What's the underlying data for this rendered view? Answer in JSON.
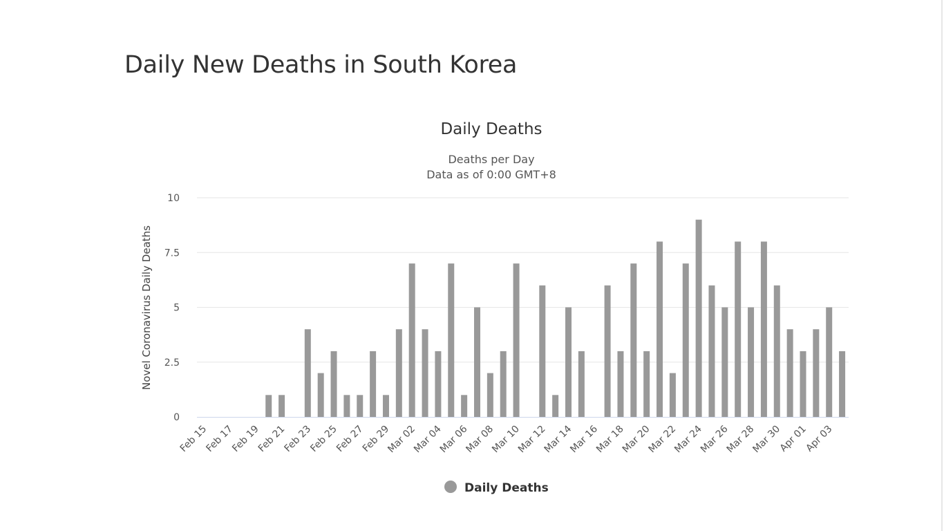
{
  "page": {
    "title": "Daily New Deaths in South Korea"
  },
  "chart_data": {
    "type": "bar",
    "title": "Daily Deaths",
    "subtitle_lines": [
      "Deaths per Day",
      "Data as of 0:00 GMT+8"
    ],
    "ylabel": "Novel Coronavirus Daily Deaths",
    "xlabel": "",
    "ylim": [
      0,
      10
    ],
    "yticks": [
      "0",
      "2.5",
      "5",
      "7.5",
      "10"
    ],
    "grid": true,
    "legend_position": "bottom-center",
    "color": "#999999",
    "categories": [
      "Feb 15",
      "Feb 16",
      "Feb 17",
      "Feb 18",
      "Feb 19",
      "Feb 20",
      "Feb 21",
      "Feb 22",
      "Feb 23",
      "Feb 24",
      "Feb 25",
      "Feb 26",
      "Feb 27",
      "Feb 28",
      "Feb 29",
      "Mar 01",
      "Mar 02",
      "Mar 03",
      "Mar 04",
      "Mar 05",
      "Mar 06",
      "Mar 07",
      "Mar 08",
      "Mar 09",
      "Mar 10",
      "Mar 11",
      "Mar 12",
      "Mar 13",
      "Mar 14",
      "Mar 15",
      "Mar 16",
      "Mar 17",
      "Mar 18",
      "Mar 19",
      "Mar 20",
      "Mar 21",
      "Mar 22",
      "Mar 23",
      "Mar 24",
      "Mar 25",
      "Mar 26",
      "Mar 27",
      "Mar 28",
      "Mar 29",
      "Mar 30",
      "Mar 31",
      "Apr 01",
      "Apr 02",
      "Apr 03",
      "Apr 04"
    ],
    "xtick_labels": [
      "Feb 15",
      "Feb 17",
      "Feb 19",
      "Feb 21",
      "Feb 23",
      "Feb 25",
      "Feb 27",
      "Feb 29",
      "Mar 02",
      "Mar 04",
      "Mar 06",
      "Mar 08",
      "Mar 10",
      "Mar 12",
      "Mar 14",
      "Mar 16",
      "Mar 18",
      "Mar 20",
      "Mar 22",
      "Mar 24",
      "Mar 26",
      "Mar 28",
      "Mar 30",
      "Apr 01",
      "Apr 03"
    ],
    "series": [
      {
        "name": "Daily Deaths",
        "values": [
          0,
          0,
          0,
          0,
          0,
          1,
          1,
          0,
          4,
          2,
          3,
          1,
          1,
          3,
          1,
          4,
          7,
          4,
          3,
          7,
          1,
          5,
          2,
          3,
          7,
          0,
          6,
          1,
          5,
          3,
          0,
          6,
          3,
          7,
          3,
          8,
          2,
          7,
          9,
          6,
          5,
          8,
          5,
          8,
          6,
          4,
          3,
          4,
          5,
          3
        ]
      }
    ]
  }
}
